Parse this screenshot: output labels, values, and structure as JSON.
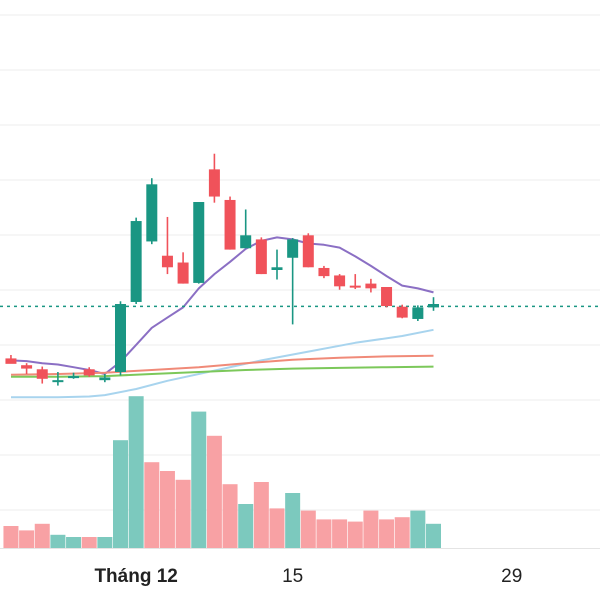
{
  "chart_data": {
    "type": "candlestick",
    "x_tick_labels": [
      {
        "day": 5,
        "label": "Tháng 12"
      },
      {
        "day": 15,
        "label": "15"
      },
      {
        "day": 29,
        "label": "29"
      }
    ],
    "current_price_line": {
      "value": 44.3,
      "style": "dashed"
    },
    "candles": [
      {
        "day": -3,
        "open": 29.0,
        "high": 30.0,
        "low": 28.0,
        "close": 27.4
      },
      {
        "day": -2,
        "open": 27.0,
        "high": 27.6,
        "low": 24.4,
        "close": 26.0
      },
      {
        "day": -1,
        "open": 25.8,
        "high": 26.6,
        "low": 21.6,
        "close": 23.0
      },
      {
        "day": 0,
        "open": 22.6,
        "high": 25.0,
        "low": 21.0,
        "close": 22.6
      },
      {
        "day": 1,
        "open": 23.2,
        "high": 24.8,
        "low": 23.0,
        "close": 23.8
      },
      {
        "day": 2,
        "open": 25.8,
        "high": 26.4,
        "low": 23.6,
        "close": 24.0
      },
      {
        "day": 3,
        "open": 22.6,
        "high": 24.4,
        "low": 22.0,
        "close": 23.4
      },
      {
        "day": 4,
        "open": 25.0,
        "high": 45.8,
        "low": 24.0,
        "close": 45.0
      },
      {
        "day": 5,
        "open": 45.6,
        "high": 70.4,
        "low": 45.0,
        "close": 69.4
      },
      {
        "day": 6,
        "open": 63.4,
        "high": 82.0,
        "low": 62.6,
        "close": 80.2
      },
      {
        "day": 7,
        "open": 59.2,
        "high": 70.6,
        "low": 53.8,
        "close": 55.8
      },
      {
        "day": 8,
        "open": 57.2,
        "high": 60.2,
        "low": 51.0,
        "close": 51.0
      },
      {
        "day": 9,
        "open": 51.2,
        "high": 75.0,
        "low": 51.0,
        "close": 75.0
      },
      {
        "day": 10,
        "open": 84.6,
        "high": 89.2,
        "low": 74.8,
        "close": 76.6
      },
      {
        "day": 11,
        "open": 75.6,
        "high": 76.6,
        "low": 61.0,
        "close": 61.0
      },
      {
        "day": 12,
        "open": 61.4,
        "high": 72.8,
        "low": 61.4,
        "close": 65.2
      },
      {
        "day": 13,
        "open": 64.0,
        "high": 64.6,
        "low": 53.8,
        "close": 53.8
      },
      {
        "day": 14,
        "open": 55.0,
        "high": 61.0,
        "low": 52.2,
        "close": 55.8
      },
      {
        "day": 15,
        "open": 58.6,
        "high": 64.4,
        "low": 39.0,
        "close": 64.0
      },
      {
        "day": 16,
        "open": 65.2,
        "high": 65.8,
        "low": 55.8,
        "close": 55.8
      },
      {
        "day": 17,
        "open": 55.6,
        "high": 56.2,
        "low": 52.6,
        "close": 53.2
      },
      {
        "day": 18,
        "open": 53.4,
        "high": 53.8,
        "low": 49.2,
        "close": 50.2
      },
      {
        "day": 19,
        "open": 50.4,
        "high": 53.8,
        "low": 49.4,
        "close": 50.2
      },
      {
        "day": 20,
        "open": 51.0,
        "high": 52.4,
        "low": 48.4,
        "close": 49.6
      },
      {
        "day": 21,
        "open": 50.0,
        "high": 50.0,
        "low": 44.0,
        "close": 44.4
      },
      {
        "day": 22,
        "open": 44.2,
        "high": 44.8,
        "low": 40.8,
        "close": 41.0
      },
      {
        "day": 23,
        "open": 40.6,
        "high": 44.6,
        "low": 40.0,
        "close": 44.0
      },
      {
        "day": 24,
        "open": 44.0,
        "high": 47.0,
        "low": 43.0,
        "close": 45.0
      }
    ],
    "volumes": [
      {
        "day": -3,
        "value": 10,
        "direction": "down"
      },
      {
        "day": -2,
        "value": 8,
        "direction": "down"
      },
      {
        "day": -1,
        "value": 11,
        "direction": "down"
      },
      {
        "day": 0,
        "value": 6,
        "direction": "up"
      },
      {
        "day": 1,
        "value": 5,
        "direction": "up"
      },
      {
        "day": 2,
        "value": 5,
        "direction": "down"
      },
      {
        "day": 3,
        "value": 5,
        "direction": "up"
      },
      {
        "day": 4,
        "value": 49,
        "direction": "up"
      },
      {
        "day": 5,
        "value": 69,
        "direction": "up"
      },
      {
        "day": 6,
        "value": 39,
        "direction": "down"
      },
      {
        "day": 7,
        "value": 35,
        "direction": "down"
      },
      {
        "day": 8,
        "value": 31,
        "direction": "down"
      },
      {
        "day": 9,
        "value": 62,
        "direction": "up"
      },
      {
        "day": 10,
        "value": 51,
        "direction": "down"
      },
      {
        "day": 11,
        "value": 29,
        "direction": "down"
      },
      {
        "day": 12,
        "value": 20,
        "direction": "up"
      },
      {
        "day": 13,
        "value": 30,
        "direction": "down"
      },
      {
        "day": 14,
        "value": 18,
        "direction": "down"
      },
      {
        "day": 15,
        "value": 25,
        "direction": "up"
      },
      {
        "day": 16,
        "value": 17,
        "direction": "down"
      },
      {
        "day": 17,
        "value": 13,
        "direction": "down"
      },
      {
        "day": 18,
        "value": 13,
        "direction": "down"
      },
      {
        "day": 19,
        "value": 12,
        "direction": "down"
      },
      {
        "day": 20,
        "value": 17,
        "direction": "down"
      },
      {
        "day": 21,
        "value": 13,
        "direction": "down"
      },
      {
        "day": 22,
        "value": 14,
        "direction": "down"
      },
      {
        "day": 23,
        "value": 17,
        "direction": "up"
      },
      {
        "day": 24,
        "value": 11,
        "direction": "up"
      }
    ],
    "moving_averages": [
      {
        "color": "#8b6fc4",
        "points": [
          [
            -3,
            28.4
          ],
          [
            -2,
            28.2
          ],
          [
            -1,
            27.6
          ],
          [
            0,
            27.2
          ],
          [
            1,
            26.4
          ],
          [
            2,
            25.6
          ],
          [
            3,
            24.4
          ],
          [
            4,
            28.0
          ],
          [
            5,
            33.0
          ],
          [
            6,
            38.0
          ],
          [
            7,
            41.0
          ],
          [
            8,
            44.0
          ],
          [
            9,
            49.6
          ],
          [
            10,
            53.8
          ],
          [
            11,
            57.4
          ],
          [
            12,
            61.2
          ],
          [
            13,
            63.6
          ],
          [
            14,
            64.6
          ],
          [
            15,
            64.0
          ],
          [
            16,
            62.8
          ],
          [
            17,
            62.4
          ],
          [
            18,
            61.6
          ],
          [
            19,
            59.0
          ],
          [
            20,
            56.2
          ],
          [
            21,
            53.2
          ],
          [
            22,
            50.4
          ],
          [
            23,
            49.6
          ],
          [
            24,
            48.4
          ]
        ]
      },
      {
        "color": "#a8d4ee",
        "points": [
          [
            -3,
            17.6
          ],
          [
            0,
            17.6
          ],
          [
            2,
            17.8
          ],
          [
            3,
            18.2
          ],
          [
            5,
            20.0
          ],
          [
            7,
            22.4
          ],
          [
            10,
            25.4
          ],
          [
            13,
            28.4
          ],
          [
            16,
            31.0
          ],
          [
            19,
            33.6
          ],
          [
            22,
            35.6
          ],
          [
            24,
            37.4
          ]
        ]
      },
      {
        "color": "#f08a78",
        "points": [
          [
            -3,
            24.2
          ],
          [
            0,
            24.4
          ],
          [
            3,
            24.8
          ],
          [
            6,
            25.6
          ],
          [
            9,
            26.4
          ],
          [
            12,
            27.6
          ],
          [
            15,
            28.6
          ],
          [
            18,
            29.2
          ],
          [
            21,
            29.6
          ],
          [
            24,
            29.8
          ]
        ]
      },
      {
        "color": "#7cc85a",
        "points": [
          [
            -3,
            23.6
          ],
          [
            0,
            23.6
          ],
          [
            3,
            23.8
          ],
          [
            6,
            24.4
          ],
          [
            9,
            25.0
          ],
          [
            12,
            25.6
          ],
          [
            15,
            26.0
          ],
          [
            18,
            26.2
          ],
          [
            21,
            26.4
          ],
          [
            24,
            26.6
          ]
        ]
      }
    ],
    "colors": {
      "up": "#1a9683",
      "down": "#f0525a",
      "volume_up": "#7cc9be",
      "volume_down": "#f8a1a4",
      "current_price_line": "#1a9683",
      "grid": "#eeeeee"
    },
    "grid": true
  }
}
